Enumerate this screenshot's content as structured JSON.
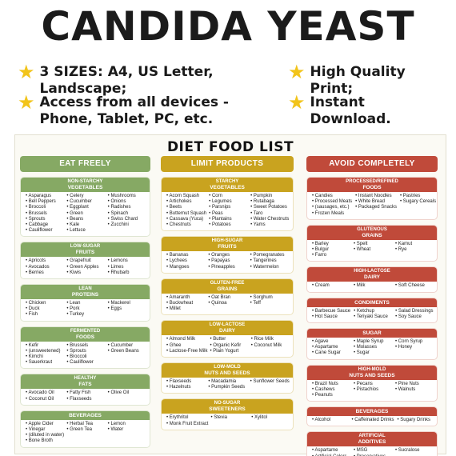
{
  "title": "CANDIDA YEAST",
  "features": [
    {
      "text": "3 SIZES: A4, US Letter, Landscape;"
    },
    {
      "text": "High Quality Print;"
    },
    {
      "text": "Access from all devices - Phone, Tablet, PC, etc."
    },
    {
      "text": "Instant Download."
    }
  ],
  "sheet_title": "DIET FOOD LIST",
  "colors": {
    "eat_freely": "#86a964",
    "limit": "#c9a31f",
    "avoid": "#c04a3a",
    "star": "#f2c41b"
  },
  "columns": [
    {
      "heading": "EAT FREELY",
      "sections": [
        {
          "label": "NON-STARCHY",
          "sub": "VEGETABLES",
          "items": [
            [
              "Asparagus",
              "Bell Peppers",
              "Broccoli",
              "Brussels",
              "Sprouts",
              "Cabbage",
              "Cauliflower"
            ],
            [
              "Celery",
              "Cucumber",
              "Eggplant",
              "Green",
              "Beans",
              "Kale",
              "Lettuce"
            ],
            [
              "Mushrooms",
              "Onions",
              "Radishes",
              "Spinach",
              "Swiss Chard",
              "Zucchini"
            ]
          ]
        },
        {
          "label": "LOW-SUGAR",
          "sub": "FRUITS",
          "items": [
            [
              "Apricots",
              "Avocados",
              "Berries"
            ],
            [
              "Grapefruit",
              "Green Apples",
              "Kiwis"
            ],
            [
              "Lemons",
              "Limes",
              "Rhubarb"
            ]
          ]
        },
        {
          "label": "LEAN",
          "sub": "PROTEINS",
          "items": [
            [
              "Chicken",
              "Duck",
              "Fish"
            ],
            [
              "Lean",
              "Pork",
              "Turkey"
            ],
            [
              "Mackerel",
              "Eggs"
            ]
          ]
        },
        {
          "label": "FERMENTED",
          "sub": "FOODS",
          "items": [
            [
              "Kefir",
              "(unsweetened)",
              "Kimchi",
              "Sauerkraut"
            ],
            [
              "Brussels",
              "Sprouts",
              "Broccoli",
              "Cauliflower"
            ],
            [
              "Cucumber",
              "Green Beans"
            ]
          ]
        },
        {
          "label": "HEALTHY",
          "sub": "FATS",
          "items": [
            [
              "Avocado Oil",
              "Coconut Oil"
            ],
            [
              "Fatty Fish",
              "Flaxseeds"
            ],
            [
              "Olive Oil"
            ]
          ]
        },
        {
          "label": "",
          "sub": "BEVERAGES",
          "items": [
            [
              "Apple Cider",
              "Vinegar",
              "(diluted in water)",
              "Bone Broth"
            ],
            [
              "Herbal Tea",
              "Green Tea"
            ],
            [
              "Lemon",
              "Water"
            ]
          ]
        }
      ]
    },
    {
      "heading": "LIMIT PRODUCTS",
      "sections": [
        {
          "label": "STARCHY",
          "sub": "VEGETABLES",
          "items": [
            [
              "Acorn Squash",
              "Artichokes",
              "Beets",
              "Butternut Squash",
              "Cassava (Yuca)",
              "Chestnuts"
            ],
            [
              "Corn",
              "Legumes",
              "Parsnips",
              "Peas",
              "Plantains",
              "Potatoes"
            ],
            [
              "Pumpkin",
              "Rutabaga",
              "Sweet Potatoes",
              "Taro",
              "Water Chestnuts",
              "Yams"
            ]
          ]
        },
        {
          "label": "HIGH-SUGAR",
          "sub": "FRUITS",
          "items": [
            [
              "Bananas",
              "Lychees",
              "Mangoes"
            ],
            [
              "Oranges",
              "Papayas",
              "Pineapples"
            ],
            [
              "Pomegranates",
              "Tangerines",
              "Watermelon"
            ]
          ]
        },
        {
          "label": "GLUTEN-FREE",
          "sub": "GRAINS",
          "items": [
            [
              "Amaranth",
              "Buckwheat",
              "Millet"
            ],
            [
              "Oat Bran",
              "Quinoa"
            ],
            [
              "Sorghum",
              "Teff"
            ]
          ]
        },
        {
          "label": "LOW-LACTOSE",
          "sub": "DAIRY",
          "items": [
            [
              "Almond Milk",
              "Ghee",
              "Lactose-Free Milk"
            ],
            [
              "Butter",
              "Organic Kefir",
              "Plain Yogurt"
            ],
            [
              "Rice Milk",
              "Coconut Milk"
            ]
          ]
        },
        {
          "label": "LOW-MOLD",
          "sub": "NUTS AND SEEDS",
          "items": [
            [
              "Flaxseeds",
              "Hazelnuts"
            ],
            [
              "Macadamia",
              "Pumpkin Seeds"
            ],
            [
              "Sunflower Seeds"
            ]
          ]
        },
        {
          "label": "NO-SUGAR",
          "sub": "SWEETENERS",
          "items": [
            [
              "Erythritol",
              "Monk Fruit Extract"
            ],
            [
              "Stevia"
            ],
            [
              "Xylitol"
            ]
          ]
        }
      ]
    },
    {
      "heading": "AVOID COMPLETELY",
      "sections": [
        {
          "label": "PROCESSED/REFINED",
          "sub": "FOODS",
          "items": [
            [
              "Candies",
              "Processed Meats",
              "(sausages, etc.)",
              "Frozen Meals"
            ],
            [
              "Instant Noodles",
              "White Bread",
              "Packaged Snacks"
            ],
            [
              "Pastries",
              "Sugary Cereals"
            ]
          ]
        },
        {
          "label": "GLUTENOUS",
          "sub": "GRAINS",
          "items": [
            [
              "Barley",
              "Bulgur",
              "Farro"
            ],
            [
              "Spelt",
              "Wheat"
            ],
            [
              "Kamut",
              "Rye"
            ]
          ]
        },
        {
          "label": "HIGH-LACTOSE",
          "sub": "DAIRY",
          "items": [
            [
              "Cream"
            ],
            [
              "Milk"
            ],
            [
              "Soft Cheese"
            ]
          ]
        },
        {
          "label": "",
          "sub": "CONDIMENTS",
          "items": [
            [
              "Barbecue Sauce",
              "Hot Sauce"
            ],
            [
              "Ketchup",
              "Teriyaki Sauce"
            ],
            [
              "Salad Dressings",
              "Soy Sauce"
            ]
          ]
        },
        {
          "label": "",
          "sub": "SUGAR",
          "items": [
            [
              "Agave",
              "Aspartame",
              "Cane Sugar"
            ],
            [
              "Maple Syrup",
              "Molasses",
              "Sugar"
            ],
            [
              "Corn Syrup",
              "Honey"
            ]
          ]
        },
        {
          "label": "HIGH-MOLD",
          "sub": "NUTS AND SEEDS",
          "items": [
            [
              "Brazil Nuts",
              "Cashews",
              "Peanuts"
            ],
            [
              "Pecans",
              "Pistachios"
            ],
            [
              "Pine Nuts",
              "Walnuts"
            ]
          ]
        },
        {
          "label": "",
          "sub": "BEVERAGES",
          "items": [
            [
              "Alcohol"
            ],
            [
              "Caffeinated Drinks"
            ],
            [
              "Sugary Drinks"
            ]
          ]
        },
        {
          "label": "ARTIFICIAL",
          "sub": "ADDITIVES",
          "items": [
            [
              "Aspartame",
              "Artificial Colors"
            ],
            [
              "MSG",
              "Preservatives"
            ],
            [
              "Sucralose"
            ]
          ]
        }
      ]
    }
  ]
}
